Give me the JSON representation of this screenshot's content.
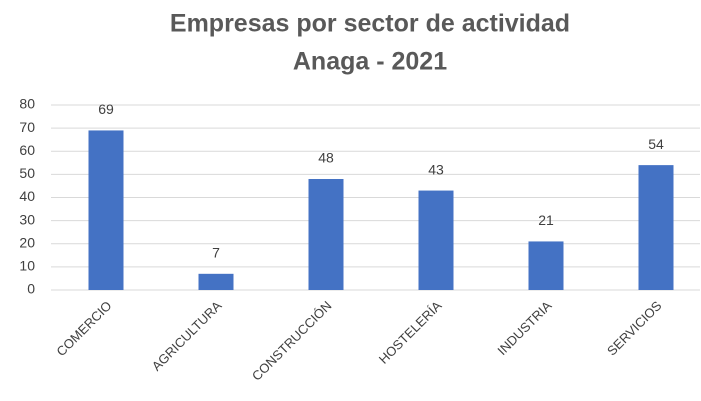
{
  "chart_data": {
    "type": "bar",
    "title": "Empresas por sector de actividad",
    "subtitle": "Anaga - 2021",
    "categories": [
      "COMERCIO",
      "AGRICULTURA",
      "CONSTRUCCIÓN",
      "HOSTELERÍA",
      "INDUSTRIA",
      "SERVICIOS"
    ],
    "values": [
      69,
      7,
      48,
      43,
      21,
      54
    ],
    "color": "#4472c4",
    "ylim": [
      0,
      80
    ],
    "yticks": [
      0,
      10,
      20,
      30,
      40,
      50,
      60,
      70,
      80
    ],
    "grid": true
  }
}
